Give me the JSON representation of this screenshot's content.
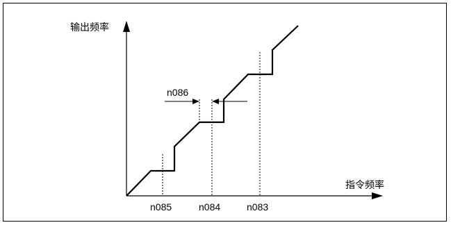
{
  "diagram": {
    "y_axis_label": "输出频率",
    "x_axis_label": "指令频率",
    "jump_width_label": "n086",
    "jump_points": [
      {
        "label": "n085"
      },
      {
        "label": "n084"
      },
      {
        "label": "n083"
      }
    ]
  },
  "colors": {
    "line": "#000000",
    "background": "#ffffff"
  }
}
